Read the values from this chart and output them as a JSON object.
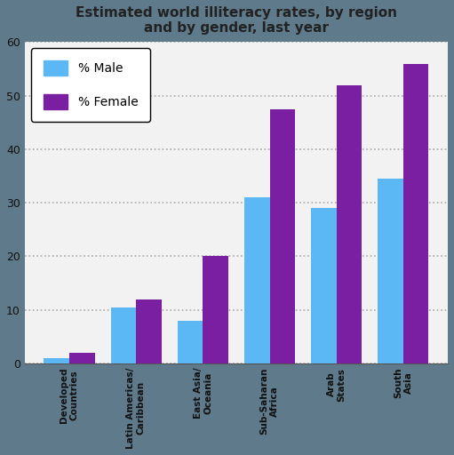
{
  "title": "Estimated world illiteracy rates, by region\nand by gender, last year",
  "categories": [
    "Developed\nCountries",
    "Latin Americas/\nCaribbean",
    "East Asia/\nOceania",
    "Sub-Saharan\nAfrica",
    "Arab\nStates",
    "South\nAsia"
  ],
  "male_values": [
    1,
    10.5,
    8,
    31,
    29,
    34.5
  ],
  "female_values": [
    2,
    12,
    20,
    47.5,
    52,
    56
  ],
  "male_color": "#5BB8F5",
  "female_color": "#7B1FA2",
  "bar_width": 0.38,
  "ylim": [
    0,
    60
  ],
  "yticks": [
    0,
    10,
    20,
    30,
    40,
    50,
    60
  ],
  "grid_color": "#aaaaaa",
  "bg_color": "#5F7A8A",
  "plot_bg_color": "#f2f2f2",
  "legend_male": "% Male",
  "legend_female": "% Female",
  "title_fontsize": 11,
  "title_color": "#222222"
}
